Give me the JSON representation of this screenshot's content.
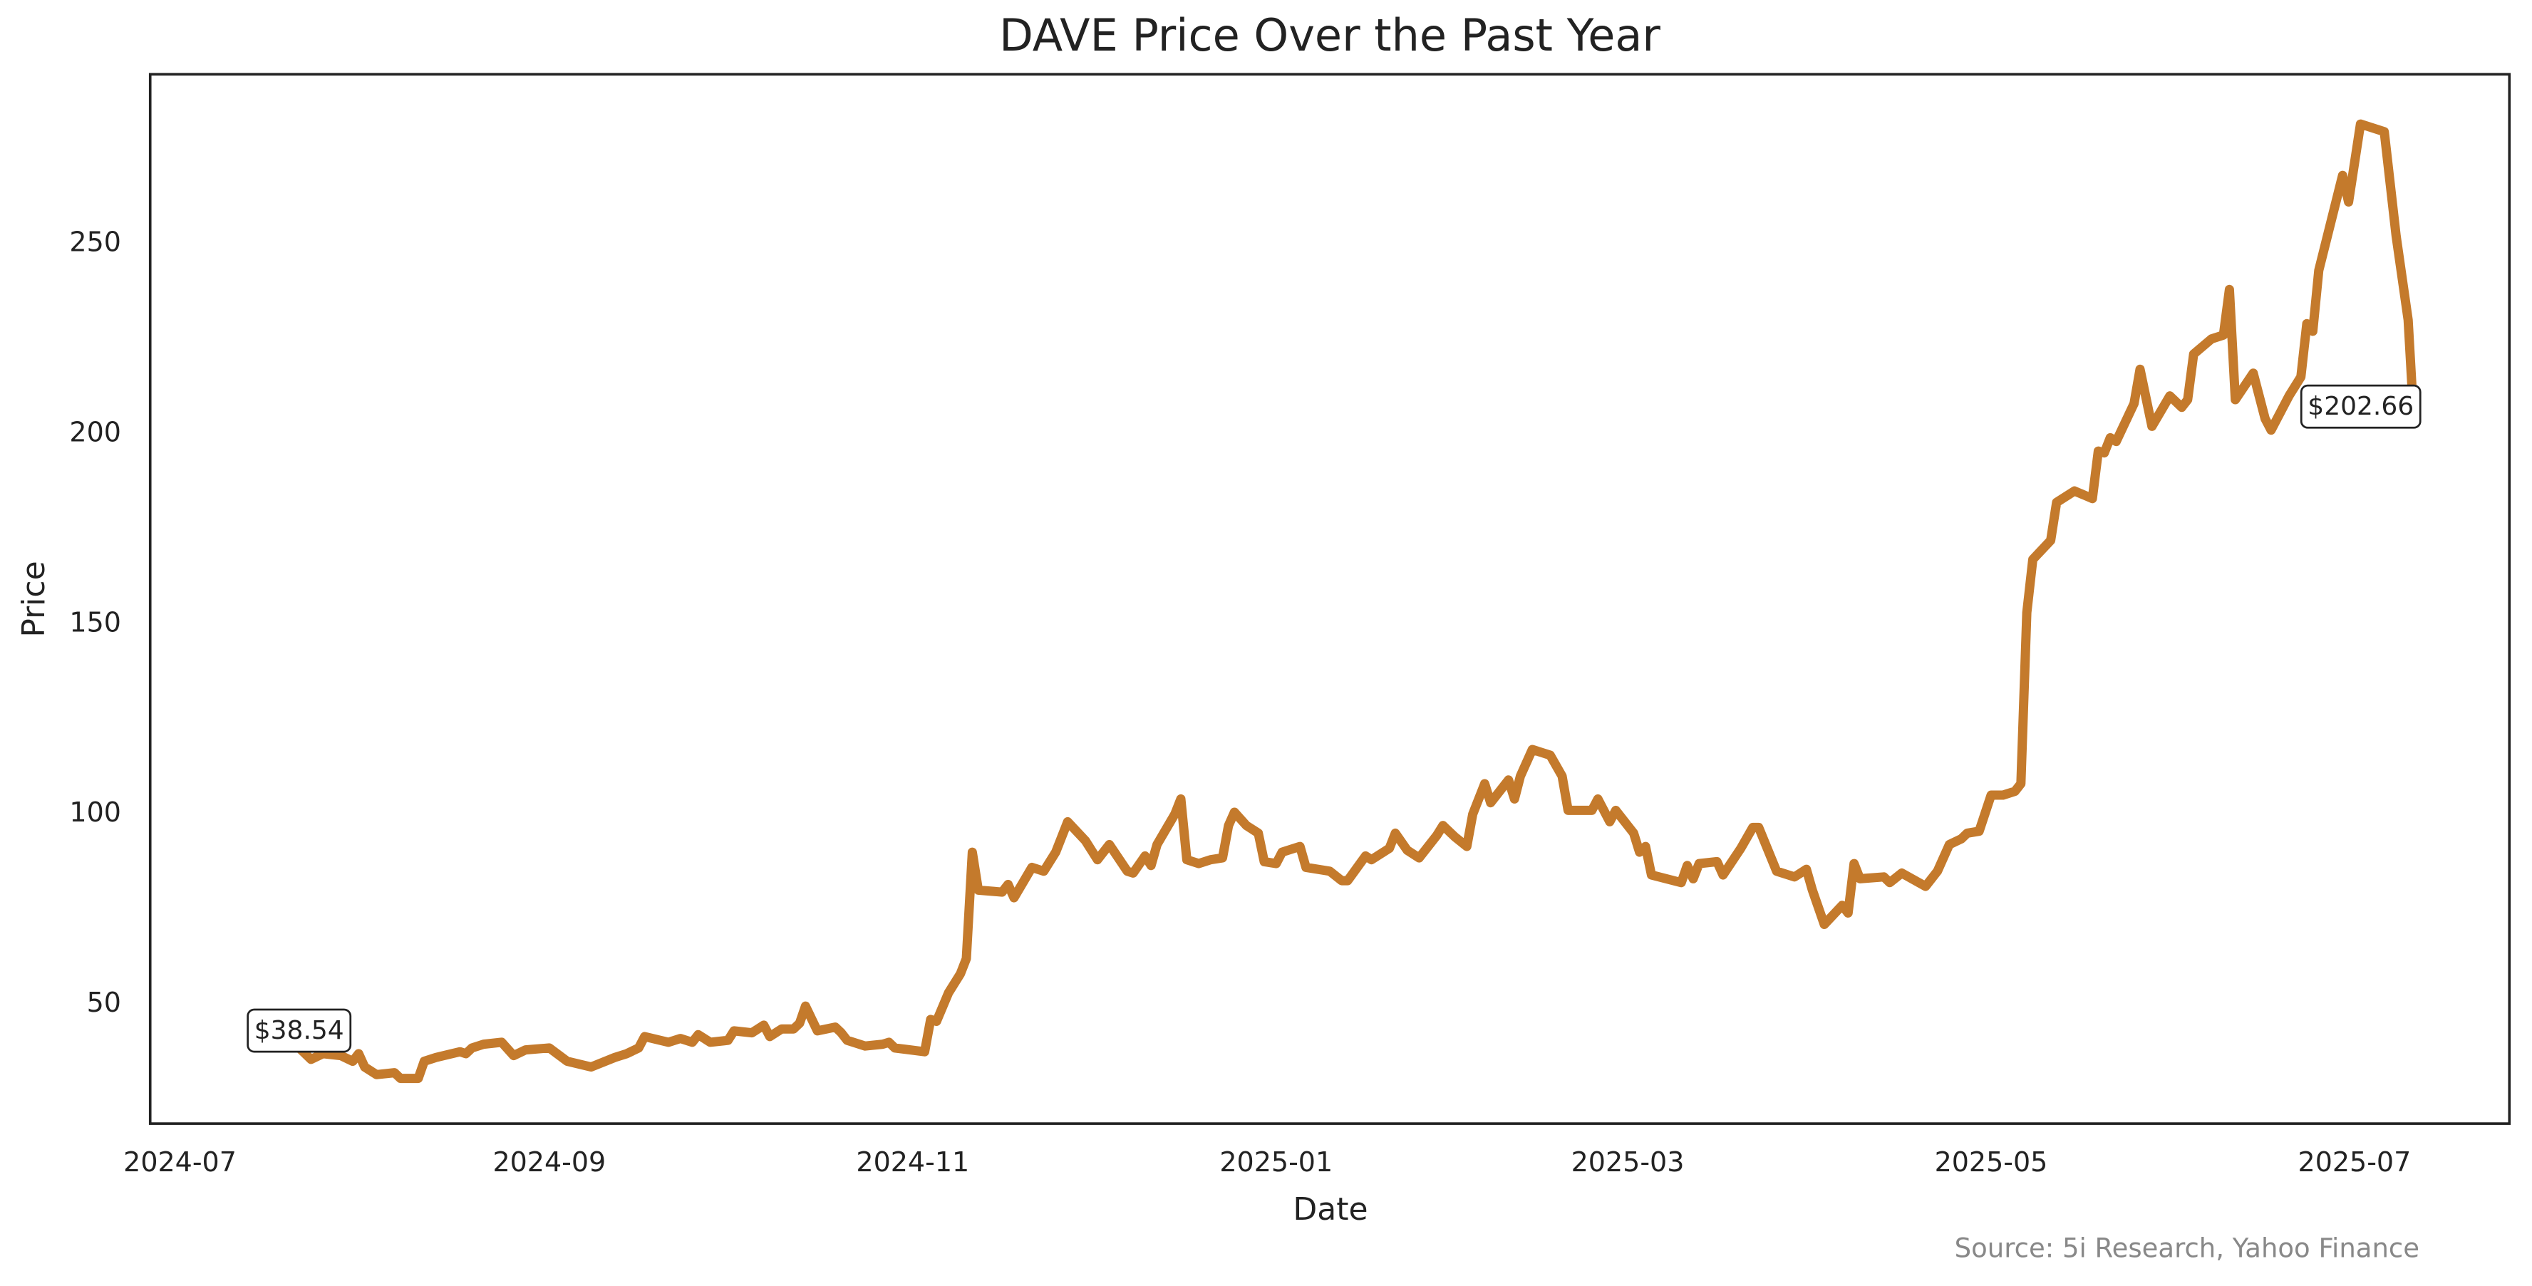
{
  "chart_data": {
    "type": "line",
    "title": "DAVE Price Over the Past Year",
    "x_label": "Date",
    "y_label": "Price",
    "source": "Source: 5i Research, Yahoo Finance",
    "xlim": [
      "2024-06-26",
      "2025-07-27"
    ],
    "xticks": [
      {
        "value": "2024-07-01",
        "label": "2024-07"
      },
      {
        "value": "2024-09-01",
        "label": "2024-09"
      },
      {
        "value": "2024-11-01",
        "label": "2024-11"
      },
      {
        "value": "2025-01-01",
        "label": "2025-01"
      },
      {
        "value": "2025-03-01",
        "label": "2025-03"
      },
      {
        "value": "2025-05-01",
        "label": "2025-05"
      },
      {
        "value": "2025-07-01",
        "label": "2025-07"
      }
    ],
    "ylim": [
      18.6,
      294.6
    ],
    "yticks": [
      50,
      100,
      150,
      200,
      250
    ],
    "grid": false,
    "series": [
      {
        "color": "#c47a2c",
        "x": [
          "2024-07-21",
          "2024-07-23",
          "2024-07-25",
          "2024-07-28",
          "2024-07-30",
          "2024-07-31",
          "2024-08-01",
          "2024-08-03",
          "2024-08-06",
          "2024-08-07",
          "2024-08-10",
          "2024-08-11",
          "2024-08-13",
          "2024-08-17",
          "2024-08-18",
          "2024-08-19",
          "2024-08-21",
          "2024-08-24",
          "2024-08-26",
          "2024-08-28",
          "2024-09-01",
          "2024-09-04",
          "2024-09-08",
          "2024-09-12",
          "2024-09-14",
          "2024-09-16",
          "2024-09-17",
          "2024-09-21",
          "2024-09-23",
          "2024-09-25",
          "2024-09-26",
          "2024-09-28",
          "2024-10-01",
          "2024-10-02",
          "2024-10-05",
          "2024-10-07",
          "2024-10-08",
          "2024-10-10",
          "2024-10-12",
          "2024-10-13",
          "2024-10-14",
          "2024-10-16",
          "2024-10-19",
          "2024-10-20",
          "2024-10-21",
          "2024-10-24",
          "2024-10-27",
          "2024-10-28",
          "2024-10-29",
          "2024-11-03",
          "2024-11-04",
          "2024-11-05",
          "2024-11-07",
          "2024-11-09",
          "2024-11-10",
          "2024-11-11",
          "2024-11-12",
          "2024-11-16",
          "2024-11-17",
          "2024-11-18",
          "2024-11-21",
          "2024-11-23",
          "2024-11-25",
          "2024-11-27",
          "2024-11-30",
          "2024-12-02",
          "2024-12-04",
          "2024-12-07",
          "2024-12-08",
          "2024-12-10",
          "2024-12-11",
          "2024-12-12",
          "2024-12-15",
          "2024-12-16",
          "2024-12-17",
          "2024-12-19",
          "2024-12-21",
          "2024-12-23",
          "2024-12-24",
          "2024-12-25",
          "2024-12-27",
          "2024-12-29",
          "2024-12-30",
          "2025-01-01",
          "2025-01-02",
          "2025-01-05",
          "2025-01-06",
          "2025-01-10",
          "2025-01-12",
          "2025-01-13",
          "2025-01-16",
          "2025-01-17",
          "2025-01-20",
          "2025-01-21",
          "2025-01-23",
          "2025-01-25",
          "2025-01-28",
          "2025-01-29",
          "2025-01-31",
          "2025-02-02",
          "2025-02-03",
          "2025-02-05",
          "2025-02-06",
          "2025-02-09",
          "2025-02-10",
          "2025-02-11",
          "2025-02-13",
          "2025-02-16",
          "2025-02-18",
          "2025-02-19",
          "2025-02-23",
          "2025-02-24",
          "2025-02-26",
          "2025-02-27",
          "2025-03-02",
          "2025-03-03",
          "2025-03-04",
          "2025-03-05",
          "2025-03-10",
          "2025-03-11",
          "2025-03-12",
          "2025-03-13",
          "2025-03-16",
          "2025-03-17",
          "2025-03-20",
          "2025-03-22",
          "2025-03-23",
          "2025-03-26",
          "2025-03-29",
          "2025-03-31",
          "2025-04-01",
          "2025-04-03",
          "2025-04-06",
          "2025-04-07",
          "2025-04-08",
          "2025-04-09",
          "2025-04-13",
          "2025-04-14",
          "2025-04-16",
          "2025-04-20",
          "2025-04-22",
          "2025-04-24",
          "2025-04-26",
          "2025-04-27",
          "2025-04-29",
          "2025-05-01",
          "2025-05-03",
          "2025-05-05",
          "2025-05-06",
          "2025-05-07",
          "2025-05-08",
          "2025-05-11",
          "2025-05-12",
          "2025-05-15",
          "2025-05-18",
          "2025-05-19",
          "2025-05-20",
          "2025-05-21",
          "2025-05-22",
          "2025-05-25",
          "2025-05-26",
          "2025-05-28",
          "2025-05-31",
          "2025-06-02",
          "2025-06-03",
          "2025-06-04",
          "2025-06-07",
          "2025-06-09",
          "2025-06-10",
          "2025-06-11",
          "2025-06-14",
          "2025-06-16",
          "2025-06-17",
          "2025-06-20",
          "2025-06-22",
          "2025-06-23",
          "2025-06-24",
          "2025-06-25",
          "2025-06-29",
          "2025-06-30",
          "2025-07-02",
          "2025-07-06",
          "2025-07-08",
          "2025-07-10",
          "2025-07-11"
        ],
        "values": [
          38.54,
          35.5,
          37,
          36.5,
          35,
          37,
          33.5,
          31.5,
          32,
          30.5,
          30.5,
          35,
          36,
          37.5,
          37,
          38.5,
          39.5,
          40,
          36.5,
          38,
          38.5,
          35,
          33.5,
          36,
          37,
          38.5,
          41.5,
          40,
          41,
          40,
          42,
          40,
          40.5,
          43,
          42.5,
          44.5,
          41.5,
          43.5,
          43.5,
          45,
          49.5,
          43,
          44,
          42.5,
          40.5,
          39,
          39.5,
          40,
          38.5,
          37.5,
          46,
          45.5,
          53,
          58,
          62,
          90,
          80,
          79.5,
          81.5,
          78,
          86,
          85,
          90,
          98,
          93,
          88,
          92,
          85,
          84.5,
          89,
          86.5,
          92,
          100,
          104,
          88,
          87,
          88,
          88.5,
          97,
          100.5,
          97,
          95,
          87.5,
          87,
          90,
          91.5,
          86,
          85,
          82.5,
          82.5,
          89,
          88,
          91,
          95,
          90.5,
          88.5,
          94.5,
          97,
          94,
          91.5,
          100,
          108,
          103,
          109,
          104,
          110,
          117,
          115.5,
          110,
          101,
          101,
          104,
          98,
          101,
          95,
          90,
          91.5,
          84,
          82,
          86.5,
          83,
          87,
          87.5,
          84,
          91,
          96.5,
          96.5,
          85,
          83.5,
          85.5,
          80,
          71,
          76,
          74,
          87,
          83,
          83.5,
          82,
          84.5,
          81,
          85,
          92,
          93.5,
          95,
          95.5,
          105,
          105,
          106,
          108,
          153,
          167,
          172,
          182,
          185,
          183,
          195.5,
          195,
          199,
          198,
          208,
          217,
          202,
          210,
          207,
          209,
          221,
          225,
          226,
          238,
          209,
          216,
          204,
          201,
          210,
          215,
          229,
          227,
          243,
          268,
          261,
          281.5,
          279.5,
          252,
          230,
          202.66
        ],
        "value_labels": {
          "0": "$38.54",
          "184": "$202.66"
        }
      }
    ]
  }
}
